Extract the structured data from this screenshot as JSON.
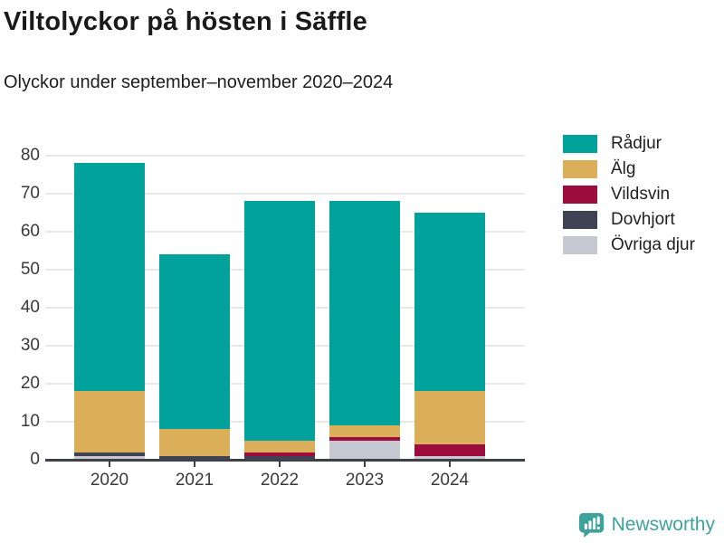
{
  "header": {
    "title": "Viltolyckor på hösten i Säffle",
    "subtitle": "Olyckor under september–november 2020–2024"
  },
  "chart_data": {
    "type": "bar",
    "stacked": true,
    "title": "Viltolyckor på hösten i Säffle",
    "subtitle": "Olyckor under september–november 2020–2024",
    "categories": [
      "2020",
      "2021",
      "2022",
      "2023",
      "2024"
    ],
    "series": [
      {
        "name": "Rådjur",
        "color": "#00a29b",
        "values": [
          60,
          46,
          63,
          59,
          47
        ]
      },
      {
        "name": "Älg",
        "color": "#dbae59",
        "values": [
          16,
          7,
          3,
          3,
          14
        ]
      },
      {
        "name": "Vildsvin",
        "color": "#9c0d3d",
        "values": [
          0,
          0,
          1,
          1,
          3
        ]
      },
      {
        "name": "Dovhjort",
        "color": "#3f4354",
        "values": [
          1,
          1,
          1,
          0,
          0
        ]
      },
      {
        "name": "Övriga djur",
        "color": "#c7c9d2",
        "values": [
          1,
          0,
          0,
          5,
          1
        ]
      }
    ],
    "stack_order_bottom_to_top": [
      "Övriga djur",
      "Dovhjort",
      "Vildsvin",
      "Älg",
      "Rådjur"
    ],
    "totals": [
      78,
      54,
      68,
      68,
      65
    ],
    "xlabel": "",
    "ylabel": "",
    "ylim": [
      0,
      80
    ],
    "yticks": [
      0,
      10,
      20,
      30,
      40,
      50,
      60,
      70,
      80
    ],
    "grid": true,
    "legend_position": "top-right"
  },
  "footer": {
    "brand": "Newsworthy",
    "brand_color": "#3ea29a"
  },
  "style": {
    "gridline_color": "#e8e8e8",
    "axis_color": "#3d4046",
    "text_color": "#3a3a3a"
  }
}
